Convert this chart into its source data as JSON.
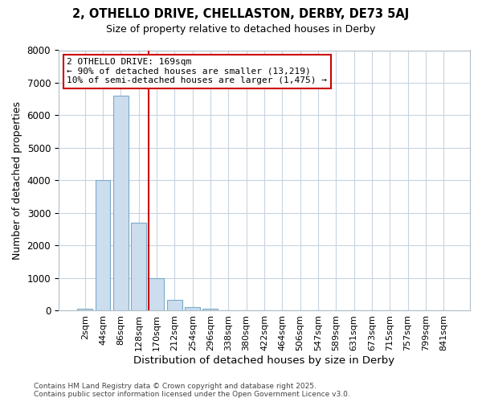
{
  "title_line1": "2, OTHELLO DRIVE, CHELLASTON, DERBY, DE73 5AJ",
  "title_line2": "Size of property relative to detached houses in Derby",
  "xlabel": "Distribution of detached houses by size in Derby",
  "ylabel": "Number of detached properties",
  "bar_labels": [
    "2sqm",
    "44sqm",
    "86sqm",
    "128sqm",
    "170sqm",
    "212sqm",
    "254sqm",
    "296sqm",
    "338sqm",
    "380sqm",
    "422sqm",
    "464sqm",
    "506sqm",
    "547sqm",
    "589sqm",
    "631sqm",
    "673sqm",
    "715sqm",
    "757sqm",
    "799sqm",
    "841sqm"
  ],
  "bar_values": [
    50,
    4000,
    6600,
    2700,
    1000,
    330,
    110,
    50,
    10,
    5,
    2,
    0,
    0,
    0,
    0,
    0,
    0,
    0,
    0,
    0,
    0
  ],
  "bar_color": "#ccdded",
  "bar_edge_color": "#7aaac8",
  "property_line_index": 4,
  "annotation_line1": "2 OTHELLO DRIVE: 169sqm",
  "annotation_line2": "← 90% of detached houses are smaller (13,219)",
  "annotation_line3": "10% of semi-detached houses are larger (1,475) →",
  "annotation_box_color": "#ffffff",
  "annotation_box_edge_color": "#cc0000",
  "vline_color": "#cc0000",
  "grid_color": "#c8d4e0",
  "plot_bg_color": "#ffffff",
  "fig_bg_color": "#ffffff",
  "ylim": [
    0,
    8000
  ],
  "yticks": [
    0,
    1000,
    2000,
    3000,
    4000,
    5000,
    6000,
    7000,
    8000
  ],
  "footer_line1": "Contains HM Land Registry data © Crown copyright and database right 2025.",
  "footer_line2": "Contains public sector information licensed under the Open Government Licence v3.0."
}
